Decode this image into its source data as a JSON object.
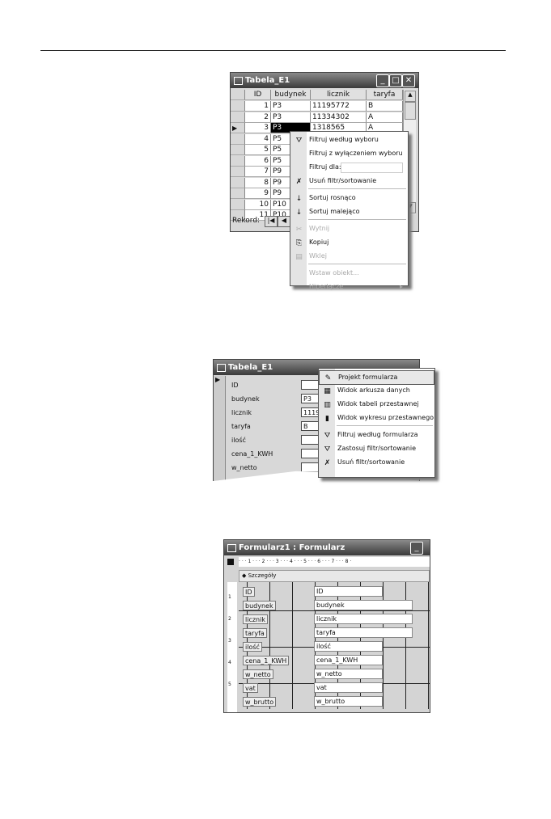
{
  "fig1": {
    "title": "Tabela_E1",
    "columns": [
      "ID",
      "budynek",
      "licznik",
      "taryfa"
    ],
    "rows": [
      [
        "1",
        "P3",
        "11195772",
        "B"
      ],
      [
        "2",
        "P3",
        "11334302",
        "A"
      ],
      [
        "3",
        "P3",
        "1318565",
        "A"
      ],
      [
        "4",
        "P5",
        "",
        ""
      ],
      [
        "5",
        "P5",
        "",
        ""
      ],
      [
        "6",
        "P5",
        "",
        ""
      ],
      [
        "7",
        "P9",
        "",
        ""
      ],
      [
        "8",
        "P9",
        "",
        ""
      ],
      [
        "9",
        "P9",
        "",
        ""
      ],
      [
        "10",
        "P10",
        "",
        ""
      ],
      [
        "11",
        "P10",
        "",
        ""
      ]
    ],
    "record_label": "Rekord:",
    "menu": [
      {
        "label": "Filtruj według wyboru",
        "icon": "filter-selection-icon",
        "enabled": true
      },
      {
        "label": "Filtruj z wyłączeniem wyboru",
        "icon": "",
        "enabled": true
      },
      {
        "label": "Filtruj dla:",
        "icon": "",
        "enabled": true,
        "input": ""
      },
      {
        "label": "Usuń filtr/sortowanie",
        "icon": "remove-filter-icon",
        "enabled": true,
        "sep_after": true
      },
      {
        "label": "Sortuj rosnąco",
        "icon": "sort-ascending-icon",
        "enabled": true
      },
      {
        "label": "Sortuj malejąco",
        "icon": "sort-descending-icon",
        "enabled": true,
        "sep_after": true
      },
      {
        "label": "Wytnij",
        "icon": "scissors-icon",
        "enabled": false
      },
      {
        "label": "Kopiuj",
        "icon": "copy-icon",
        "enabled": true
      },
      {
        "label": "Wklej",
        "icon": "paste-icon",
        "enabled": false,
        "sep_after": true
      },
      {
        "label": "Wstaw obiekt...",
        "icon": "",
        "enabled": false
      },
      {
        "label": "Hiperłącze",
        "icon": "",
        "enabled": false,
        "submenu": true
      }
    ]
  },
  "fig2": {
    "title": "Tabela_E1",
    "fields": [
      {
        "label": "ID",
        "value": ""
      },
      {
        "label": "budynek",
        "value": "P3"
      },
      {
        "label": "licznik",
        "value": "1119"
      },
      {
        "label": "taryfa",
        "value": "B"
      },
      {
        "label": "ilość",
        "value": ""
      },
      {
        "label": "cena_1_KWH",
        "value": ""
      },
      {
        "label": "w_netto",
        "value": ""
      }
    ],
    "menu": [
      {
        "label": "Projekt formularza",
        "icon": "design-view-icon",
        "highlighted": true
      },
      {
        "label": "Widok arkusza danych",
        "icon": "datasheet-icon"
      },
      {
        "label": "Widok tabeli przestawnej",
        "icon": "pivot-table-icon"
      },
      {
        "label": "Widok wykresu przestawnego",
        "icon": "pivot-chart-icon",
        "sep_after": true
      },
      {
        "label": "Filtruj według formularza",
        "icon": "filter-form-icon"
      },
      {
        "label": "Zastosuj filtr/sortowanie",
        "icon": "apply-filter-icon"
      },
      {
        "label": "Usuń filtr/sortowanie",
        "icon": "remove-filter-icon"
      }
    ]
  },
  "fig3": {
    "title": "Formularz1 : Formularz",
    "ruler": "· · · 1 · · · 2 · · · 3 · · · 4 · · · 5 · · · 6 · · · 7 · · · 8 ·",
    "section": "Szczegóły",
    "vruler": [
      "1",
      "2",
      "3",
      "4",
      "5"
    ],
    "fields": [
      "ID",
      "budynek",
      "licznik",
      "taryfa",
      "ilość",
      "cena_1_KWH",
      "w_netto",
      "vat",
      "w_brutto"
    ]
  }
}
